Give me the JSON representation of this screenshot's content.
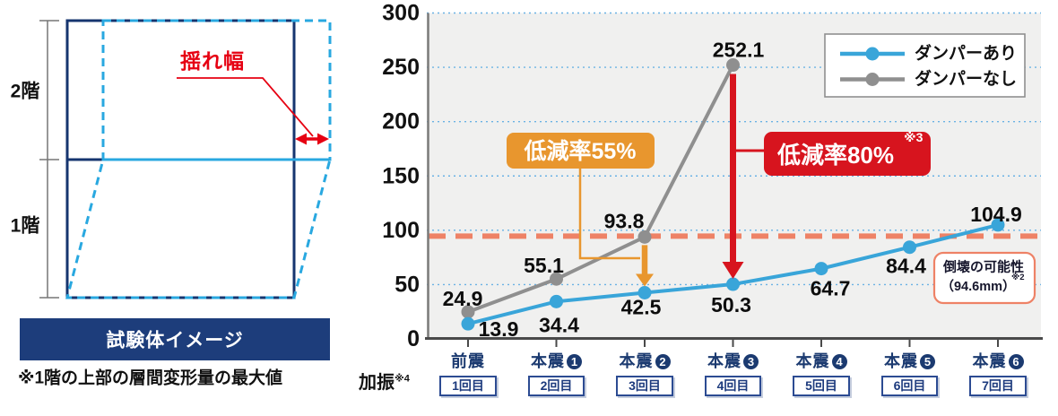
{
  "left_panel": {
    "floor2": "2階",
    "floor1": "1階",
    "sway_label": "揺れ幅",
    "caption": "試験体イメージ",
    "footnote": "※1階の上部の層間変形量の最大値"
  },
  "chart_data": {
    "type": "line",
    "title": "",
    "xlabel": "",
    "ylabel": "",
    "ylim": [
      0,
      300
    ],
    "y_ticks": [
      0,
      50,
      100,
      150,
      200,
      250,
      300
    ],
    "grid": true,
    "grid_color": "#6ab2e4",
    "plot_bg": "#f0f0ef",
    "legend_position": "top-right",
    "x_prefix": {
      "label": "加振",
      "sup": "※4"
    },
    "categories": [
      {
        "label": "前震",
        "number": null,
        "badge": "1回目"
      },
      {
        "label": "本震",
        "number": "1",
        "badge": "2回目"
      },
      {
        "label": "本震",
        "number": "2",
        "badge": "3回目"
      },
      {
        "label": "本震",
        "number": "3",
        "badge": "4回目"
      },
      {
        "label": "本震",
        "number": "4",
        "badge": "5回目"
      },
      {
        "label": "本震",
        "number": "5",
        "badge": "6回目"
      },
      {
        "label": "本震",
        "number": "6",
        "badge": "7回目"
      }
    ],
    "series": [
      {
        "name": "ダンパーあり",
        "color": "#39a5d9",
        "values": [
          13.9,
          34.4,
          42.5,
          50.3,
          64.7,
          84.4,
          104.9
        ]
      },
      {
        "name": "ダンパーなし",
        "color": "#8f8f8f",
        "values": [
          24.9,
          55.1,
          93.8,
          252.1
        ]
      }
    ],
    "threshold": {
      "value": 94.6,
      "color": "#ee8266",
      "note_line1": "倒壊の可能性",
      "note_line2": "（94.6mm）",
      "note_sup": "※2"
    },
    "annotations": [
      {
        "text": "低減率55%",
        "sup": "",
        "color": "#e8962e",
        "at_category": 2
      },
      {
        "text": "低減率80%",
        "sup": "※3",
        "color": "#d7141e",
        "at_category": 3
      }
    ]
  }
}
